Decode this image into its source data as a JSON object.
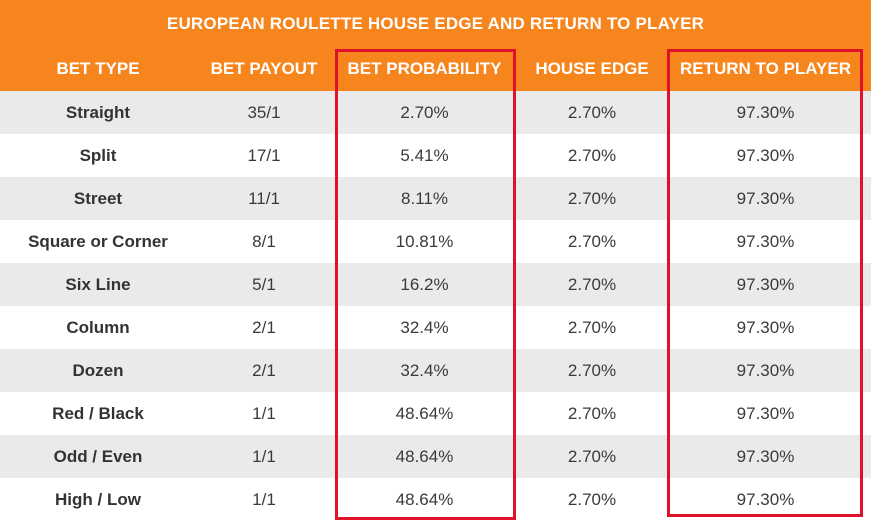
{
  "table": {
    "title": "EUROPEAN ROULETTE HOUSE EDGE AND RETURN TO PLAYER",
    "headers": [
      "BET TYPE",
      "BET PAYOUT",
      "BET PROBABILITY",
      "HOUSE EDGE",
      "RETURN TO PLAYER"
    ],
    "rows": [
      [
        "Straight",
        "35/1",
        "2.70%",
        "2.70%",
        "97.30%"
      ],
      [
        "Split",
        "17/1",
        "5.41%",
        "2.70%",
        "97.30%"
      ],
      [
        "Street",
        "11/1",
        "8.11%",
        "2.70%",
        "97.30%"
      ],
      [
        "Square or Corner",
        "8/1",
        "10.81%",
        "2.70%",
        "97.30%"
      ],
      [
        "Six Line",
        "5/1",
        "16.2%",
        "2.70%",
        "97.30%"
      ],
      [
        "Column",
        "2/1",
        "32.4%",
        "2.70%",
        "97.30%"
      ],
      [
        "Dozen",
        "2/1",
        "32.4%",
        "2.70%",
        "97.30%"
      ],
      [
        "Red / Black",
        "1/1",
        "48.64%",
        "2.70%",
        "97.30%"
      ],
      [
        "Odd / Even",
        "1/1",
        "48.64%",
        "2.70%",
        "97.30%"
      ],
      [
        "High / Low",
        "1/1",
        "48.64%",
        "2.70%",
        "97.30%"
      ]
    ]
  },
  "colors": {
    "header_bg": "#f7851e",
    "header_text": "#ffffff",
    "stripe": "#eaeaea",
    "highlight_border": "#e0112b"
  }
}
